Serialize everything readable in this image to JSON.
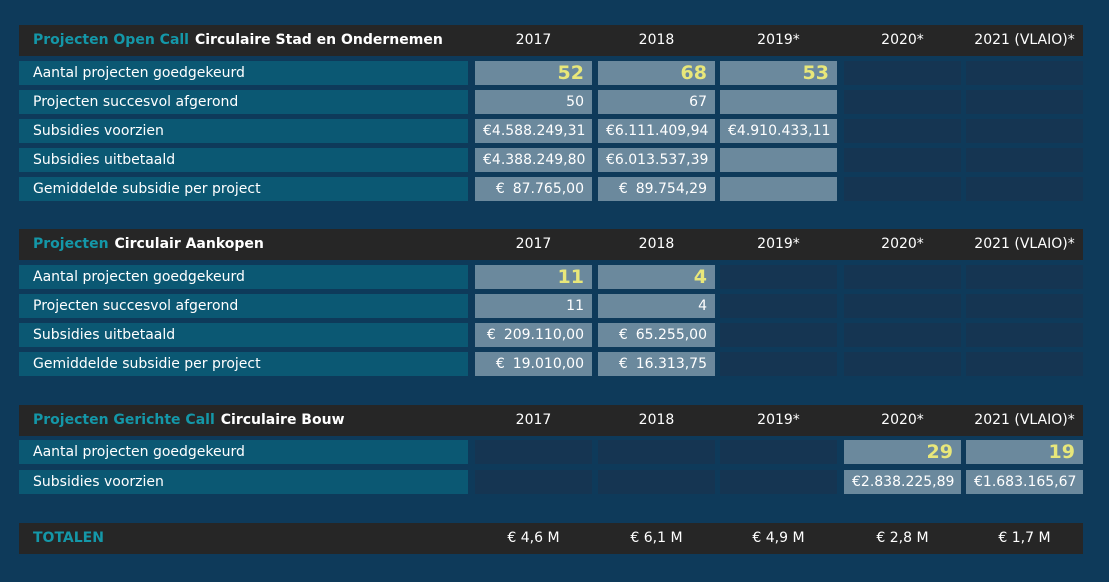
{
  "years": [
    "2017",
    "2018",
    "2019*",
    "2020*",
    "2021 (VLAIO)*"
  ],
  "section1": {
    "title_accent": "Projecten Open Call",
    "title_main": "Circulaire Stad en Ondernemen",
    "rows": [
      {
        "label": "Aantal projecten goedgekeurd",
        "values": [
          "52",
          "68",
          "53",
          "",
          ""
        ]
      },
      {
        "label": "Projecten succesvol afgerond",
        "values": [
          "50",
          "67",
          "",
          "",
          ""
        ]
      },
      {
        "label": "Subsidies voorzien",
        "values": [
          "4.588.249,31",
          "6.111.409,94",
          "4.910.433,11",
          "",
          ""
        ]
      },
      {
        "label": "Subsidies uitbetaald",
        "values": [
          "4.388.249,80",
          "6.013.537,39",
          "",
          "",
          ""
        ]
      },
      {
        "label": "Gemiddelde subsidie per project",
        "values": [
          "87.765,00",
          "89.754,29",
          "",
          "",
          ""
        ]
      }
    ]
  },
  "section2": {
    "title_accent": "Projecten",
    "title_main": "Circulair Aankopen",
    "rows": [
      {
        "label": "Aantal projecten goedgekeurd",
        "values": [
          "11",
          "4",
          "",
          "",
          ""
        ]
      },
      {
        "label": "Projecten succesvol afgerond",
        "values": [
          "11",
          "4",
          "",
          "",
          ""
        ]
      },
      {
        "label": "Subsidies uitbetaald",
        "values": [
          "209.110,00",
          "65.255,00",
          "",
          "",
          ""
        ]
      },
      {
        "label": "Gemiddelde subsidie per project",
        "values": [
          "19.010,00",
          "16.313,75",
          "",
          "",
          ""
        ]
      }
    ]
  },
  "section3": {
    "title_accent": "Projecten Gerichte Call",
    "title_main": "Circulaire Bouw",
    "rows": [
      {
        "label": "Aantal projecten goedgekeurd",
        "values": [
          "",
          "",
          "",
          "29",
          "19"
        ]
      },
      {
        "label": "Subsidies voorzien",
        "values": [
          "",
          "",
          "",
          "2.838.225,89",
          "1.683.165,67"
        ]
      }
    ]
  },
  "totals": {
    "label": "TOTALEN",
    "values": [
      "€ 4,6 M",
      "€ 6,1 M",
      "€ 4,9 M",
      "€ 2,8 M",
      "€ 1,7 M"
    ]
  },
  "currency_symbol": "€",
  "colors": {
    "background": "#0e3a5a",
    "header": "#262626",
    "label_cell": "#0b5873",
    "value_cell": "#6b899d",
    "empty_cell": "#153552",
    "accent": "#1497a8",
    "highlight_number": "#e8e77a"
  }
}
